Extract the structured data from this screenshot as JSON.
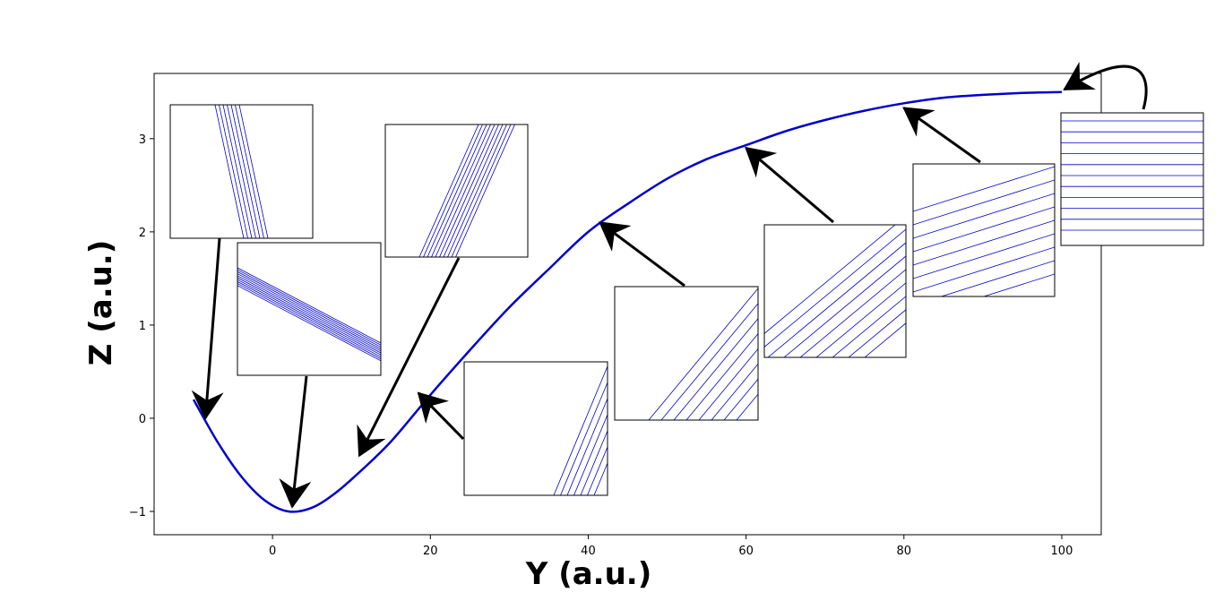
{
  "chart_data": {
    "type": "line",
    "xlabel": "Y (a.u.)",
    "ylabel": "Z (a.u.)",
    "xlim": [
      -15,
      105
    ],
    "ylim": [
      -1.25,
      3.7
    ],
    "x_ticks": [
      0,
      20,
      40,
      60,
      80,
      100
    ],
    "y_ticks": [
      -1,
      0,
      1,
      2,
      3
    ],
    "grid": false,
    "legend": "none",
    "colors": {
      "curve": "#0000cc",
      "inset_lines": "#0000cc",
      "arrow": "#000000",
      "frame": "#000000"
    },
    "series": [
      {
        "x": [
          -10,
          -7,
          -4,
          -1,
          2,
          5,
          8,
          11,
          15,
          20,
          25,
          30,
          35,
          40,
          45,
          50,
          55,
          60,
          65,
          70,
          75,
          80,
          85,
          90,
          95,
          100
        ],
        "y": [
          0.2,
          -0.25,
          -0.62,
          -0.88,
          -1.0,
          -0.96,
          -0.8,
          -0.58,
          -0.25,
          0.25,
          0.73,
          1.19,
          1.6,
          2.0,
          2.3,
          2.57,
          2.78,
          2.93,
          3.08,
          3.2,
          3.3,
          3.38,
          3.44,
          3.47,
          3.49,
          3.5
        ]
      }
    ],
    "insets": [
      {
        "id": "inset-1",
        "target": [
          -8.5,
          0.0
        ],
        "lines": 7,
        "slope": "steep-negative"
      },
      {
        "id": "inset-2",
        "target": [
          2.5,
          -0.95
        ],
        "lines": 10,
        "slope": "shallow-negative"
      },
      {
        "id": "inset-3",
        "target": [
          11,
          -0.4
        ],
        "lines": 10,
        "slope": "steep-positive"
      },
      {
        "id": "inset-4",
        "target": [
          18.5,
          0.27
        ],
        "lines": 7,
        "slope": "steep-positive"
      },
      {
        "id": "inset-5",
        "target": [
          41.5,
          2.1
        ],
        "lines": 8,
        "slope": "positive"
      },
      {
        "id": "inset-6",
        "target": [
          60,
          2.9
        ],
        "lines": 9,
        "slope": "moderate-positive"
      },
      {
        "id": "inset-7",
        "target": [
          80,
          3.33
        ],
        "lines": 9,
        "slope": "shallow-positive"
      },
      {
        "id": "inset-8",
        "target": [
          100,
          3.5
        ],
        "lines": 11,
        "slope": "flat"
      }
    ]
  }
}
